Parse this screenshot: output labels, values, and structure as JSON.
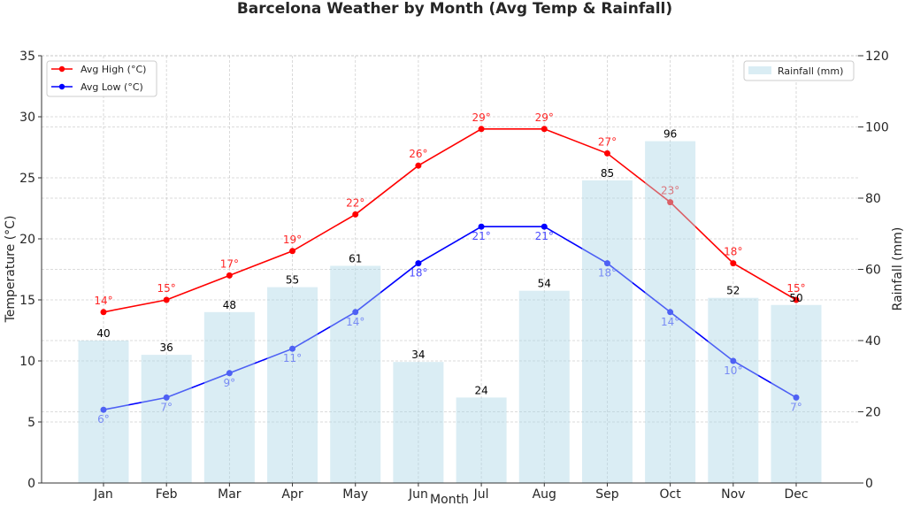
{
  "chart_data": {
    "type": "bar+line",
    "title": "Barcelona Weather by Month (Avg Temp & Rainfall)",
    "xlabel": "Month",
    "ylabel_left": "Temperature (°C)",
    "ylabel_right": "Rainfall (mm)",
    "categories": [
      "Jan",
      "Feb",
      "Mar",
      "Apr",
      "May",
      "Jun",
      "Jul",
      "Aug",
      "Sep",
      "Oct",
      "Nov",
      "Dec"
    ],
    "ylim_left": [
      0,
      35
    ],
    "ylim_right": [
      0,
      120
    ],
    "yticks_left": [
      0,
      5,
      10,
      15,
      20,
      25,
      30,
      35
    ],
    "yticks_right": [
      0,
      20,
      40,
      60,
      80,
      100,
      120
    ],
    "grid": true,
    "series": [
      {
        "name": "Avg High (°C)",
        "type": "line",
        "axis": "left",
        "color": "#ff0000",
        "values": [
          14,
          15,
          17,
          19,
          22,
          26,
          29,
          29,
          27,
          23,
          18,
          15
        ]
      },
      {
        "name": "Avg Low (°C)",
        "type": "line",
        "axis": "left",
        "color": "#0000ff",
        "values": [
          6,
          7,
          9,
          11,
          14,
          18,
          21,
          21,
          18,
          14,
          10,
          7
        ]
      },
      {
        "name": "Rainfall (mm)",
        "type": "bar",
        "axis": "right",
        "color": "#add8e6",
        "values": [
          40,
          36,
          48,
          55,
          61,
          34,
          24,
          54,
          85,
          96,
          52,
          50
        ]
      }
    ],
    "label_suffix": "°",
    "legend": [
      {
        "position": "top-left",
        "entries": [
          "Avg High (°C)",
          "Avg Low (°C)"
        ]
      },
      {
        "position": "top-right",
        "entries": [
          "Rainfall (mm)"
        ]
      }
    ]
  }
}
